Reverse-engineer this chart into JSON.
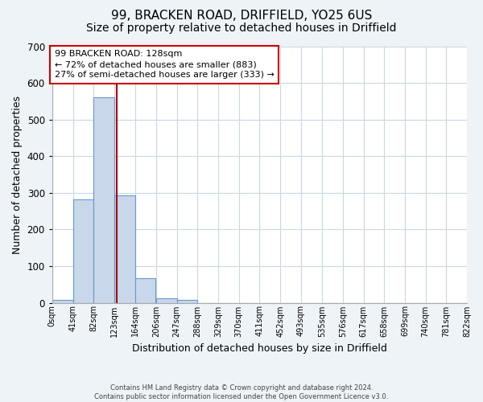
{
  "title": "99, BRACKEN ROAD, DRIFFIELD, YO25 6US",
  "subtitle": "Size of property relative to detached houses in Driffield",
  "xlabel": "Distribution of detached houses by size in Driffield",
  "ylabel": "Number of detached properties",
  "bar_left_edges": [
    0,
    41,
    82,
    123,
    164,
    206,
    247,
    288,
    329,
    370,
    411,
    452,
    493,
    535,
    576,
    617,
    658,
    699,
    740,
    781
  ],
  "bar_heights": [
    7,
    281,
    560,
    293,
    67,
    13,
    8,
    0,
    0,
    0,
    0,
    0,
    0,
    0,
    0,
    0,
    0,
    0,
    0,
    0
  ],
  "bin_width": 41,
  "bar_color": "#c8d8ea",
  "bar_edge_color": "#6699cc",
  "xtick_labels": [
    "0sqm",
    "41sqm",
    "82sqm",
    "123sqm",
    "164sqm",
    "206sqm",
    "247sqm",
    "288sqm",
    "329sqm",
    "370sqm",
    "411sqm",
    "452sqm",
    "493sqm",
    "535sqm",
    "576sqm",
    "617sqm",
    "658sqm",
    "699sqm",
    "740sqm",
    "781sqm",
    "822sqm"
  ],
  "ylim": [
    0,
    700
  ],
  "yticks": [
    0,
    100,
    200,
    300,
    400,
    500,
    600,
    700
  ],
  "property_line_x": 128,
  "property_line_color": "#aa0000",
  "annotation_text": "99 BRACKEN ROAD: 128sqm\n← 72% of detached houses are smaller (883)\n27% of semi-detached houses are larger (333) →",
  "annotation_box_color": "#ffffff",
  "annotation_box_edge": "#cc0000",
  "grid_color": "#c8d8e8",
  "bg_color": "#eef3f8",
  "plot_bg_color": "#ffffff",
  "footnote": "Contains HM Land Registry data © Crown copyright and database right 2024.\nContains public sector information licensed under the Open Government Licence v3.0.",
  "title_fontsize": 11,
  "subtitle_fontsize": 10,
  "xlabel_fontsize": 9,
  "ylabel_fontsize": 9,
  "annot_fontsize": 8
}
